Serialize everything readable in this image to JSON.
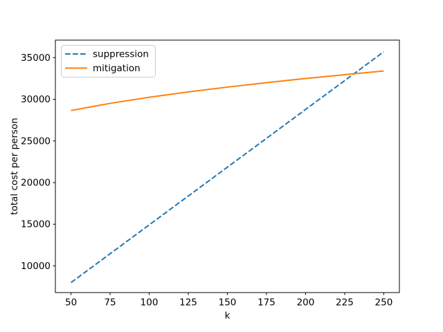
{
  "chart_data": {
    "type": "line",
    "xlabel": "k",
    "ylabel": "total cost per person",
    "x": [
      50,
      75,
      100,
      125,
      150,
      175,
      200,
      225,
      250
    ],
    "series": [
      {
        "name": "suppression",
        "color": "#1f77b4",
        "line_style": "dashed",
        "values": [
          8000,
          11460,
          14930,
          18390,
          21850,
          25310,
          28780,
          32240,
          35700
        ]
      },
      {
        "name": "mitigation",
        "color": "#ff7f0e",
        "line_style": "solid",
        "values": [
          28650,
          29510,
          30240,
          30880,
          31460,
          31990,
          32490,
          32950,
          33400
        ]
      }
    ],
    "xticks": [
      50,
      75,
      100,
      125,
      150,
      175,
      200,
      225,
      250
    ],
    "yticks": [
      10000,
      15000,
      20000,
      25000,
      30000,
      35000
    ],
    "xlim": [
      40,
      260
    ],
    "ylim": [
      6800,
      37100
    ],
    "grid": false,
    "legend_position": "upper-left",
    "crossover_k_approx": 230
  }
}
